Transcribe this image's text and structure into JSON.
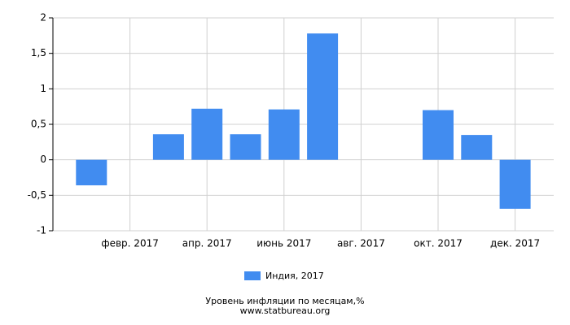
{
  "chart_data": {
    "type": "bar",
    "title": "Уровень инфляции по месяцам,%",
    "subtitle": "www.statbureau.org",
    "categories": [
      null,
      "февр. 2017",
      null,
      "апр. 2017",
      null,
      "июнь 2017",
      null,
      "авг. 2017",
      null,
      "окт. 2017",
      null,
      "дек. 2017"
    ],
    "series": [
      {
        "name": "Индия, 2017",
        "color": "#418cf0",
        "values": [
          -0.36,
          0,
          0.36,
          0.72,
          0.36,
          0.71,
          1.78,
          0,
          0,
          0.7,
          0.35,
          -0.69
        ]
      }
    ],
    "ylim": [
      -1,
      2
    ],
    "yticks": [
      -1,
      {
        "value": -0.5,
        "label": "-0,5"
      },
      0,
      {
        "value": 0.5,
        "label": "0,5"
      },
      1,
      {
        "value": 1.5,
        "label": "1,5"
      },
      2
    ],
    "grid": true
  }
}
